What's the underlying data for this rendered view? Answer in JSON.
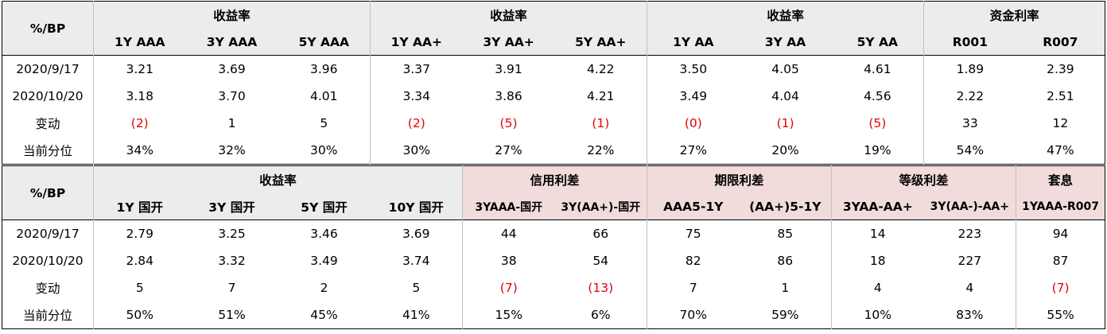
{
  "table_a": {
    "corner": "%/BP",
    "groups": [
      "收益率",
      "收益率",
      "收益率",
      "资金利率"
    ],
    "columns": [
      "1Y AAA",
      "3Y AAA",
      "5Y AAA",
      "1Y AA+",
      "3Y AA+",
      "5Y AA+",
      "1Y AA",
      "3Y AA",
      "5Y AA",
      "R001",
      "R007"
    ],
    "rows": [
      {
        "label": "2020/9/17",
        "cells": [
          "3.21",
          "3.69",
          "3.96",
          "3.37",
          "3.91",
          "4.22",
          "3.50",
          "4.05",
          "4.61",
          "1.89",
          "2.39"
        ]
      },
      {
        "label": "2020/10/20",
        "cells": [
          "3.18",
          "3.70",
          "4.01",
          "3.34",
          "3.86",
          "4.21",
          "3.49",
          "4.04",
          "4.56",
          "2.22",
          "2.51"
        ]
      },
      {
        "label": "变动",
        "cells": [
          "(2)",
          "1",
          "5",
          "(2)",
          "(5)",
          "(1)",
          "(0)",
          "(1)",
          "(5)",
          "33",
          "12"
        ]
      },
      {
        "label": "当前分位",
        "cells": [
          "34%",
          "32%",
          "30%",
          "30%",
          "27%",
          "22%",
          "27%",
          "20%",
          "19%",
          "54%",
          "47%"
        ]
      }
    ]
  },
  "table_b": {
    "corner": "%/BP",
    "groups": [
      "收益率",
      "信用利差",
      "期限利差",
      "等级利差",
      "套息"
    ],
    "columns": [
      "1Y 国开",
      "3Y 国开",
      "5Y 国开",
      "10Y 国开",
      "3YAAA-国开",
      "3Y(AA+)-国开",
      "AAA5-1Y",
      "(AA+)5-1Y",
      "3YAA-AA+",
      "3Y(AA-)-AA+",
      "1YAAA-R007"
    ],
    "rows": [
      {
        "label": "2020/9/17",
        "cells": [
          "2.79",
          "3.25",
          "3.46",
          "3.69",
          "44",
          "66",
          "75",
          "85",
          "14",
          "223",
          "94"
        ]
      },
      {
        "label": "2020/10/20",
        "cells": [
          "2.84",
          "3.32",
          "3.49",
          "3.74",
          "38",
          "54",
          "82",
          "86",
          "18",
          "227",
          "87"
        ]
      },
      {
        "label": "变动",
        "cells": [
          "5",
          "7",
          "2",
          "5",
          "(7)",
          "(13)",
          "7",
          "1",
          "4",
          "4",
          "(7)"
        ]
      },
      {
        "label": "当前分位",
        "cells": [
          "50%",
          "51%",
          "45%",
          "41%",
          "15%",
          "6%",
          "70%",
          "59%",
          "10%",
          "83%",
          "55%"
        ]
      }
    ]
  },
  "colors": {
    "header_gray": "#ececec",
    "header_pink": "#f2dcdb",
    "negative_red": "#e60000"
  }
}
